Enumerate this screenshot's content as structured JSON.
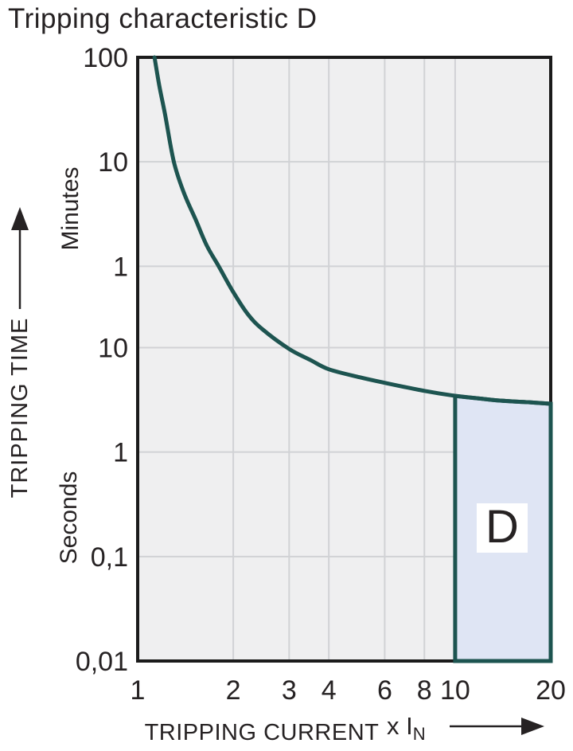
{
  "title": "Tripping characteristic D",
  "y_axis": {
    "title": "TRIPPING TIME",
    "unit_upper": "Minutes",
    "unit_lower": "Seconds",
    "ticks": [
      {
        "label": "100",
        "seconds": 6000
      },
      {
        "label": "10",
        "seconds": 600
      },
      {
        "label": "1",
        "seconds": 60
      },
      {
        "label": "10",
        "seconds": 10
      },
      {
        "label": "1",
        "seconds": 1
      },
      {
        "label": "0,1",
        "seconds": 0.1
      },
      {
        "label": "0,01",
        "seconds": 0.01
      }
    ]
  },
  "x_axis": {
    "title": "TRIPPING CURRENT",
    "multiplier_prefix": "x I",
    "multiplier_subscript": "N",
    "ticks": [
      {
        "label": "1",
        "value": 1
      },
      {
        "label": "2",
        "value": 2
      },
      {
        "label": "3",
        "value": 3
      },
      {
        "label": "4",
        "value": 4
      },
      {
        "label": "6",
        "value": 6
      },
      {
        "label": "8",
        "value": 8
      },
      {
        "label": "10",
        "value": 10
      },
      {
        "label": "20",
        "value": 20
      }
    ]
  },
  "chart_data": {
    "type": "line",
    "title": "Tripping characteristic D",
    "xlabel": "TRIPPING CURRENT x IN",
    "ylabel": "TRIPPING TIME",
    "x_scale": "log",
    "y_scale": "log",
    "x_range": [
      1,
      20
    ],
    "y_range_seconds": [
      0.01,
      6000
    ],
    "grid": true,
    "series": [
      {
        "name": "Characteristic D trip curve",
        "x_unit": "multiple of rated current IN",
        "y_unit": "seconds",
        "points": [
          [
            1.13,
            6000
          ],
          [
            1.17,
            3200
          ],
          [
            1.22,
            1700
          ],
          [
            1.3,
            600
          ],
          [
            1.4,
            300
          ],
          [
            1.52,
            170
          ],
          [
            1.65,
            95
          ],
          [
            1.8,
            60
          ],
          [
            2.0,
            34
          ],
          [
            2.22,
            21
          ],
          [
            2.47,
            15
          ],
          [
            3.0,
            9.7
          ],
          [
            3.5,
            7.6
          ],
          [
            4.0,
            6.2
          ],
          [
            5.0,
            5.2
          ],
          [
            6.0,
            4.6
          ],
          [
            8.0,
            3.85
          ],
          [
            10.0,
            3.45
          ],
          [
            12.0,
            3.25
          ],
          [
            14.0,
            3.1
          ],
          [
            17.0,
            3.0
          ],
          [
            20.0,
            2.9
          ]
        ]
      }
    ],
    "region": {
      "label": "D",
      "x_from": 10,
      "x_to": 20,
      "t_bottom": 0.01,
      "top_points": [
        [
          10,
          3.45
        ],
        [
          12,
          3.25
        ],
        [
          14,
          3.1
        ],
        [
          17,
          3.0
        ],
        [
          20,
          2.9
        ]
      ]
    },
    "colors": {
      "curve": "#1d5450",
      "region_fill": "#dfe5f4",
      "region_stroke": "#1d5450",
      "plot_bg": "#efeff0",
      "grid": "#d1d2d5",
      "frame": "#1b1b1b",
      "text": "#262223",
      "page_bg": "#ffffff"
    }
  }
}
